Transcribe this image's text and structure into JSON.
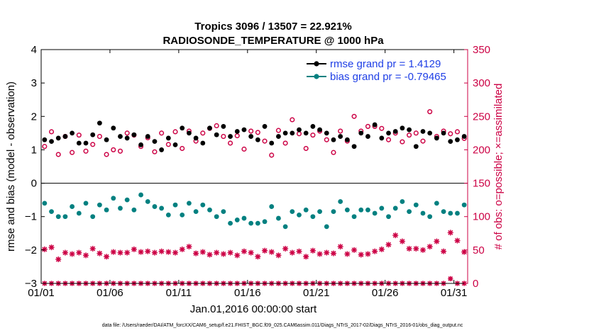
{
  "chart_data": {
    "type": "line",
    "title_line1": "Tropics 3096 / 13507 = 22.921%",
    "title_line2": "RADIOSONDE_TEMPERATURE @ 1000 hPa",
    "xlabel": "Jan.01,2016 00:00:00 start",
    "ylabel_left": "rmse and bias (model - observation)",
    "ylabel_right": "# of obs: o=possible; ×=assimilated",
    "xlim": [
      1,
      32
    ],
    "ylim_left": [
      -3,
      4
    ],
    "ylim_right": [
      0,
      350
    ],
    "x_ticks": [
      1,
      6,
      11,
      16,
      21,
      26,
      31
    ],
    "x_tick_labels": [
      "01/01",
      "01/06",
      "01/11",
      "01/16",
      "01/21",
      "01/26",
      "01/31"
    ],
    "y_left_ticks": [
      -3,
      -2,
      -1,
      0,
      1,
      2,
      3,
      4
    ],
    "y_left_tick_labels": [
      "−3",
      "−2",
      "−1",
      "0",
      "1",
      "2",
      "3",
      "4"
    ],
    "y_right_ticks": [
      0,
      50,
      100,
      150,
      200,
      250,
      300,
      350
    ],
    "y_right_tick_labels": [
      "0",
      "50",
      "100",
      "150",
      "200",
      "250",
      "300",
      "350"
    ],
    "legend": [
      {
        "label": "rmse grand pr = 1.4129",
        "color": "#000000"
      },
      {
        "label": "bias grand pr = -0.79465",
        "color": "#008080"
      }
    ],
    "footer": "data file: /Users/raeder/DAI/ATM_forcXX/CAM6_setup/f.e21.FHIST_BGC.f09_025.CAM6assim.011/Diags_NTrS_2017-02/Diags_NTrS_2016-01/obs_diag_output.nc",
    "colors": {
      "rmse": "#000000",
      "bias": "#008080",
      "obs": "#cc0044",
      "axis_right": "#cc0044"
    },
    "series": [
      {
        "name": "rmse",
        "x": [
          1.25,
          1.75,
          2.25,
          2.75,
          3.25,
          3.75,
          4.25,
          4.75,
          5.25,
          5.75,
          6.25,
          6.75,
          7.25,
          7.75,
          8.25,
          8.75,
          9.25,
          9.75,
          10.25,
          10.75,
          11.25,
          11.75,
          12.25,
          12.75,
          13.25,
          13.75,
          14.25,
          14.75,
          15.25,
          15.75,
          16.25,
          16.75,
          17.25,
          17.75,
          18.25,
          18.75,
          19.25,
          19.75,
          20.25,
          20.75,
          21.25,
          21.75,
          22.25,
          22.75,
          23.25,
          23.75,
          24.25,
          24.75,
          25.25,
          25.75,
          26.25,
          26.75,
          27.25,
          27.75,
          28.25,
          28.75,
          29.25,
          29.75,
          30.25,
          30.75,
          31.25,
          31.75
        ],
        "values": [
          1.3,
          1.25,
          1.35,
          1.4,
          1.5,
          1.2,
          1.2,
          1.45,
          1.8,
          1.3,
          1.65,
          1.4,
          1.35,
          1.45,
          1.15,
          1.4,
          1.25,
          1.0,
          1.35,
          1.15,
          1.65,
          1.5,
          1.35,
          1.2,
          1.65,
          1.45,
          1.7,
          1.4,
          1.55,
          1.6,
          1.4,
          1.3,
          1.7,
          1.2,
          1.4,
          1.5,
          1.5,
          1.6,
          1.5,
          1.7,
          1.6,
          1.5,
          1.3,
          1.4,
          1.3,
          1.1,
          1.5,
          1.4,
          1.75,
          1.35,
          1.5,
          1.55,
          1.65,
          1.6,
          1.1,
          1.55,
          1.5,
          1.35,
          1.5,
          1.25,
          1.3,
          1.4
        ]
      },
      {
        "name": "bias",
        "x": [
          1.25,
          1.75,
          2.25,
          2.75,
          3.25,
          3.75,
          4.25,
          4.75,
          5.25,
          5.75,
          6.25,
          6.75,
          7.25,
          7.75,
          8.25,
          8.75,
          9.25,
          9.75,
          10.25,
          10.75,
          11.25,
          11.75,
          12.25,
          12.75,
          13.25,
          13.75,
          14.25,
          14.75,
          15.25,
          15.75,
          16.25,
          16.75,
          17.25,
          17.75,
          18.25,
          18.75,
          19.25,
          19.75,
          20.25,
          20.75,
          21.25,
          21.75,
          22.25,
          22.75,
          23.25,
          23.75,
          24.25,
          24.75,
          25.25,
          25.75,
          26.25,
          26.75,
          27.25,
          27.75,
          28.25,
          28.75,
          29.25,
          29.75,
          30.25,
          30.75,
          31.25,
          31.75
        ],
        "values": [
          -0.6,
          -0.85,
          -1.0,
          -1.0,
          -0.7,
          -0.9,
          -0.6,
          -1.0,
          -0.65,
          -0.8,
          -0.45,
          -0.75,
          -0.5,
          -0.8,
          -0.35,
          -0.55,
          -0.7,
          -0.75,
          -0.95,
          -0.65,
          -0.95,
          -0.6,
          -0.85,
          -0.65,
          -0.8,
          -1.0,
          -0.85,
          -1.2,
          -1.1,
          -1.05,
          -1.2,
          -1.2,
          -1.15,
          -0.7,
          -1.05,
          -1.3,
          -0.85,
          -0.95,
          -0.8,
          -1.0,
          -0.85,
          -1.3,
          -0.85,
          -0.55,
          -0.8,
          -1.0,
          -0.8,
          -0.8,
          -0.9,
          -0.75,
          -1.0,
          -0.75,
          -0.55,
          -0.85,
          -0.65,
          -0.9,
          -1.0,
          -0.6,
          -0.85,
          -0.9,
          -0.9,
          -0.65
        ]
      },
      {
        "name": "obs possible",
        "x": [
          1.25,
          1.75,
          2.25,
          2.75,
          3.25,
          3.75,
          4.25,
          4.75,
          5.25,
          5.75,
          6.25,
          6.75,
          7.25,
          7.75,
          8.25,
          8.75,
          9.25,
          9.75,
          10.25,
          10.75,
          11.25,
          11.75,
          12.25,
          12.75,
          13.25,
          13.75,
          14.25,
          14.75,
          15.25,
          15.75,
          16.25,
          16.75,
          17.25,
          17.75,
          18.25,
          18.75,
          19.25,
          19.75,
          20.25,
          20.75,
          21.25,
          21.75,
          22.25,
          22.75,
          23.25,
          23.75,
          24.25,
          24.75,
          25.25,
          25.75,
          26.25,
          26.75,
          27.25,
          27.75,
          28.25,
          28.75,
          29.25,
          29.75,
          30.25,
          30.75,
          31.25,
          31.75
        ],
        "values": [
          205,
          227,
          193,
          220,
          196,
          222,
          198,
          208,
          220,
          193,
          200,
          198,
          225,
          222,
          205,
          218,
          197,
          225,
          208,
          227,
          202,
          228,
          213,
          225,
          232,
          236,
          220,
          210,
          221,
          201,
          228,
          226,
          213,
          192,
          229,
          210,
          245,
          224,
          202,
          222,
          228,
          215,
          196,
          228,
          213,
          250,
          228,
          235,
          235,
          232,
          215,
          225,
          212,
          222,
          225,
          213,
          257,
          220,
          228,
          224,
          227,
          217
        ]
      },
      {
        "name": "obs assimilated",
        "x": [
          1.25,
          1.75,
          2.25,
          2.75,
          3.25,
          3.75,
          4.25,
          4.75,
          5.25,
          5.75,
          6.25,
          6.75,
          7.25,
          7.75,
          8.25,
          8.75,
          9.25,
          9.75,
          10.25,
          10.75,
          11.25,
          11.75,
          12.25,
          12.75,
          13.25,
          13.75,
          14.25,
          14.75,
          15.25,
          15.75,
          16.25,
          16.75,
          17.25,
          17.75,
          18.25,
          18.75,
          19.25,
          19.75,
          20.25,
          20.75,
          21.25,
          21.75,
          22.25,
          22.75,
          23.25,
          23.75,
          24.25,
          24.75,
          25.25,
          25.75,
          26.25,
          26.75,
          27.25,
          27.75,
          28.25,
          28.75,
          29.25,
          29.75,
          30.25,
          30.75,
          31.25,
          31.75
        ],
        "values": [
          51,
          54,
          36,
          46,
          44,
          46,
          42,
          52,
          45,
          40,
          47,
          46,
          46,
          51,
          47,
          48,
          46,
          48,
          47,
          46,
          51,
          55,
          45,
          47,
          43,
          46,
          44,
          46,
          42,
          48,
          46,
          40,
          49,
          47,
          42,
          52,
          46,
          48,
          40,
          49,
          44,
          46,
          45,
          55,
          44,
          50,
          43,
          44,
          48,
          51,
          58,
          72,
          63,
          52,
          52,
          50,
          55,
          63,
          48,
          76,
          64,
          47
        ]
      },
      {
        "name": "obs rejected",
        "x": [
          1.25,
          1.75,
          2.25,
          2.75,
          3.25,
          3.75,
          4.25,
          4.75,
          5.25,
          5.75,
          6.25,
          6.75,
          7.25,
          7.75,
          8.25,
          8.75,
          9.25,
          9.75,
          10.25,
          10.75,
          11.25,
          11.75,
          12.25,
          12.75,
          13.25,
          13.75,
          14.25,
          14.75,
          15.25,
          15.75,
          16.25,
          16.75,
          17.25,
          17.75,
          18.25,
          18.75,
          19.25,
          19.75,
          20.25,
          20.75,
          21.25,
          21.75,
          22.25,
          22.75,
          23.25,
          23.75,
          24.25,
          24.75,
          25.25,
          25.75,
          26.25,
          26.75,
          27.25,
          27.75,
          28.25,
          28.75,
          29.25,
          29.75,
          30.25,
          30.75,
          31.25,
          31.75
        ],
        "values": [
          0,
          0,
          0,
          0,
          0,
          0,
          0,
          0,
          0,
          0,
          0,
          0,
          0,
          0,
          0,
          0,
          0,
          0,
          0,
          0,
          0,
          0,
          0,
          0,
          0,
          0,
          0,
          0,
          0,
          0,
          0,
          0,
          0,
          0,
          0,
          0,
          0,
          0,
          0,
          0,
          0,
          0,
          0,
          0,
          0,
          0,
          0,
          0,
          0,
          0,
          0,
          0,
          0,
          0,
          0,
          0,
          0,
          0,
          0,
          7,
          0,
          0
        ]
      }
    ]
  }
}
